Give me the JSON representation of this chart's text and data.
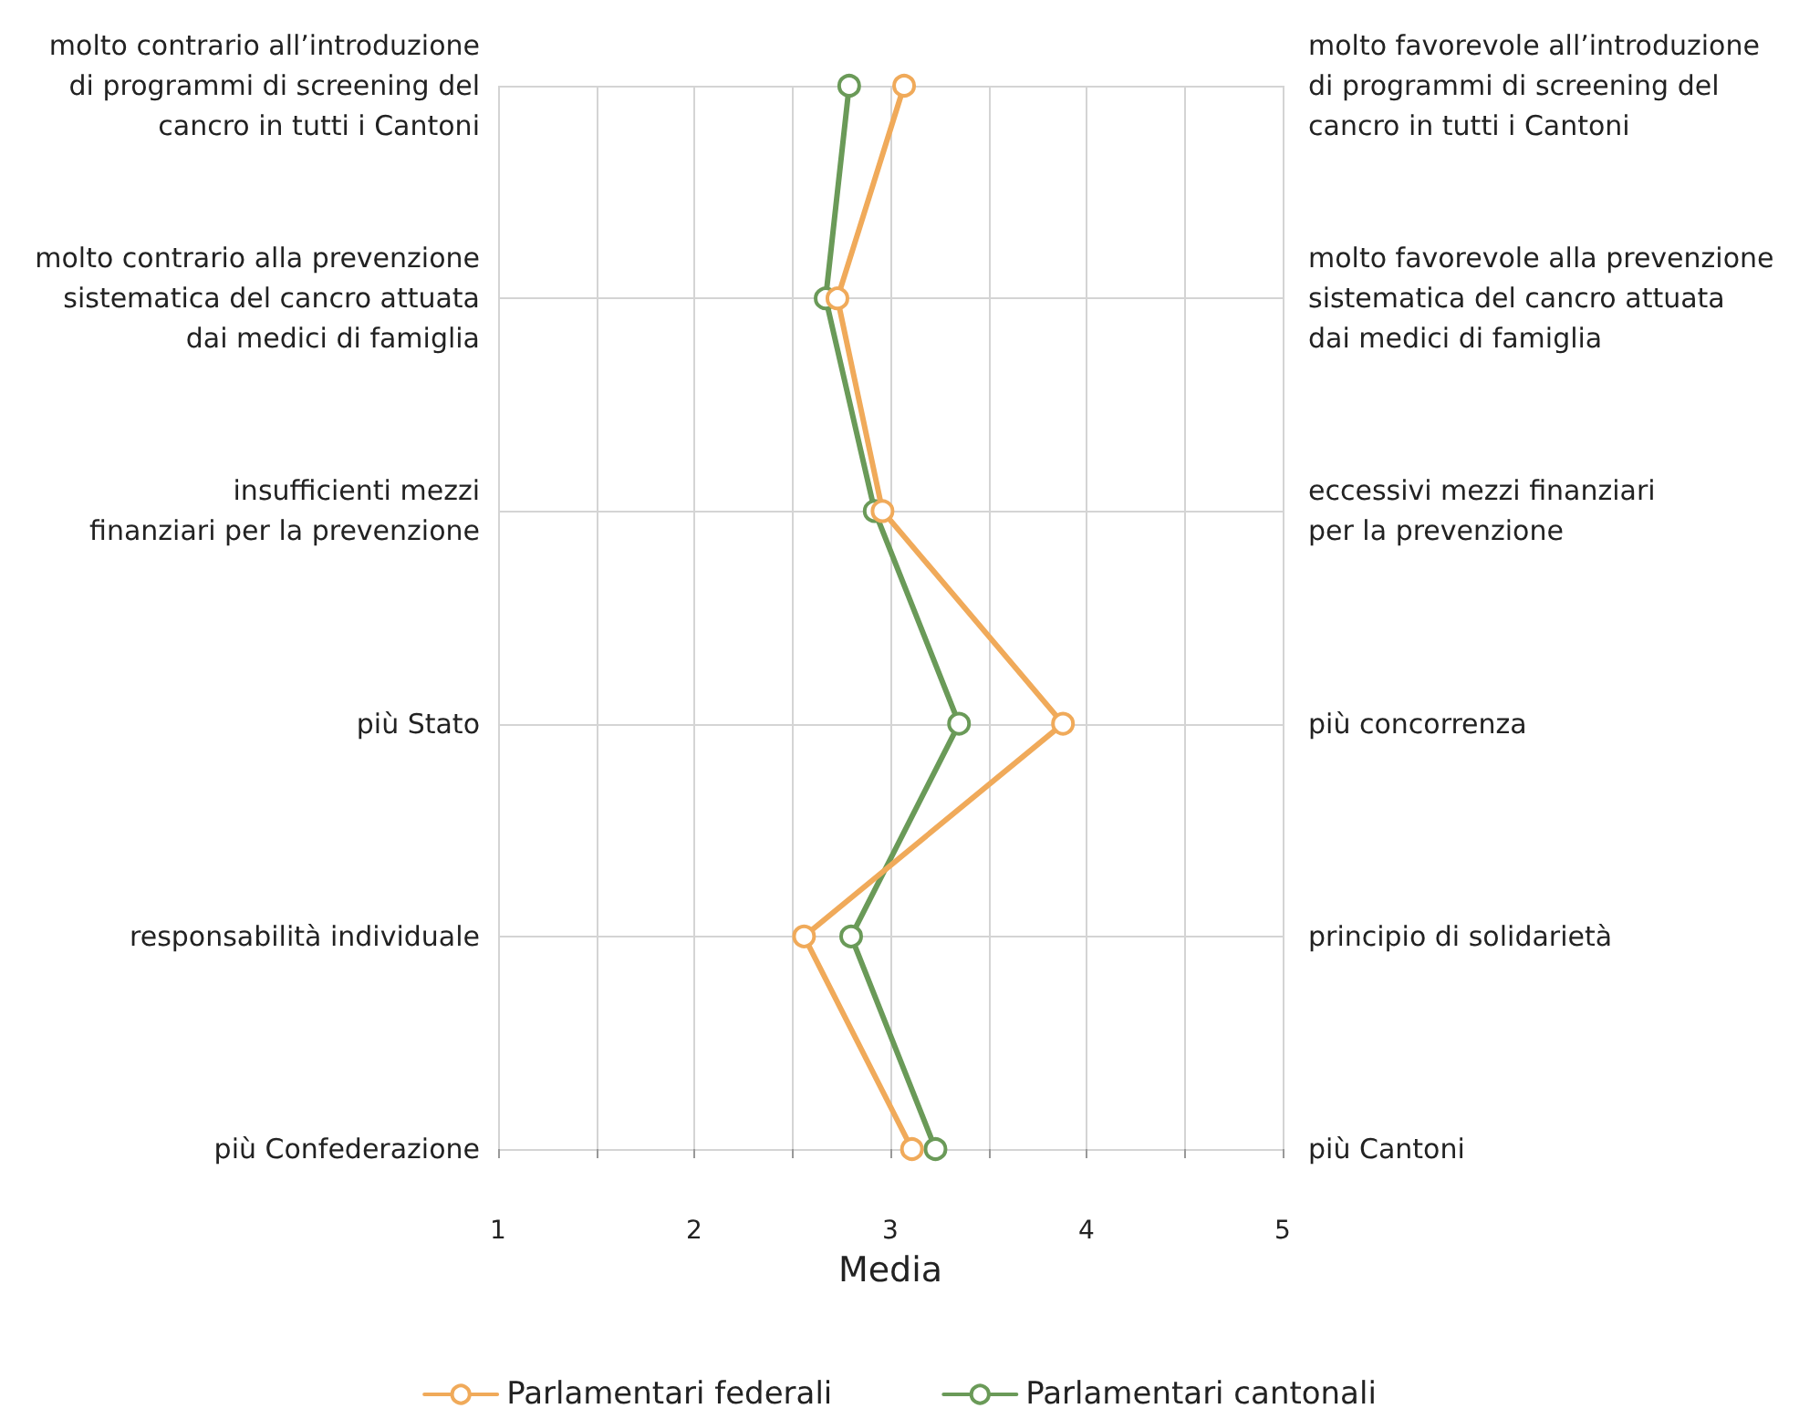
{
  "chart_data": {
    "type": "line",
    "orientation": "horizontal",
    "xlabel": "Media",
    "categories": [
      "molto contrario all’introduzione\ndi programmi di screening del\ncancro in tutti i Cantoni",
      "molto contrario alla prevenzione\nsistematica del cancro attuata\ndai medici di famiglia",
      "insufficienti mezzi\nfinanziari per la prevenzione",
      "più Stato",
      "responsabilità individuale",
      "più Confederazione"
    ],
    "y2_categories": [
      "molto favorevole all’introduzione\ndi programmi di screening del\ncancro in tutti i Cantoni",
      "molto favorevole alla prevenzione\nsistematica del cancro attuata\ndai medici di famiglia",
      "eccessivi mezzi finanziari\nper la prevenzione",
      "più concorrenza",
      "principio di solidarietà",
      "più Cantoni"
    ],
    "series": [
      {
        "name": "Parlamentari federali",
        "color": "#f0aa5a",
        "values": [
          3.07,
          2.73,
          2.96,
          3.88,
          2.56,
          3.11
        ]
      },
      {
        "name": "Parlamentari cantonali",
        "color": "#6a9a58",
        "values": [
          2.79,
          2.67,
          2.92,
          3.35,
          2.8,
          3.23
        ]
      }
    ],
    "xlim": [
      1,
      5
    ],
    "xticks": [
      1,
      {
        "value": 1.5,
        "label": null
      },
      2,
      {
        "value": 2.5,
        "label": null
      },
      3,
      {
        "value": 3.5,
        "label": null
      },
      4,
      {
        "value": 4.5,
        "label": null
      },
      5
    ],
    "grid": true,
    "legend": "bottom",
    "marker": "circle",
    "line_style": "solid"
  }
}
